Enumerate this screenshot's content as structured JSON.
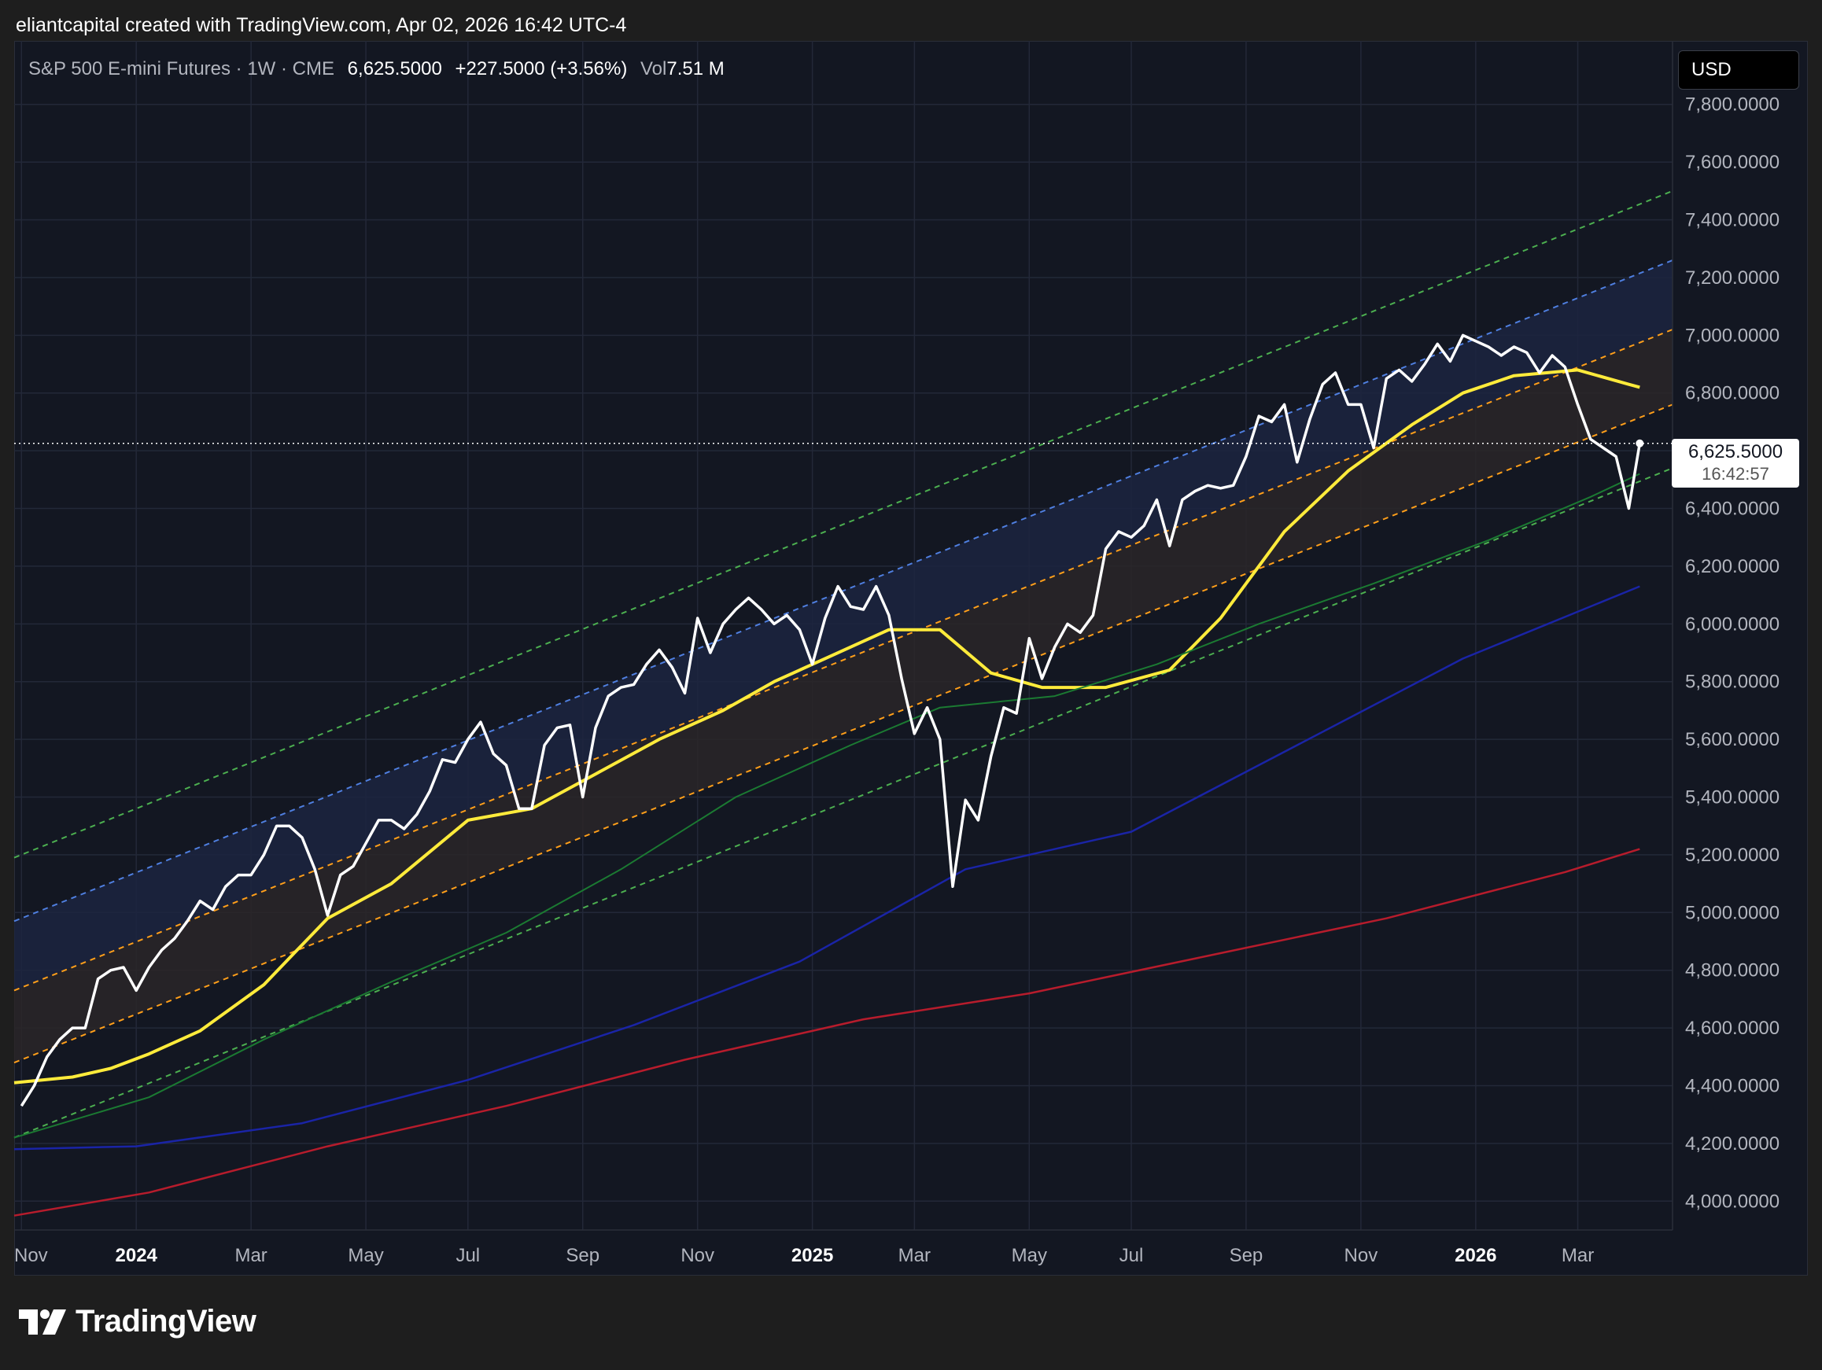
{
  "header": {
    "text": "eliantcapital created with TradingView.com, Apr 02, 2026 16:42 UTC-4"
  },
  "legend": {
    "symbol": "S&P 500 E-mini Futures · 1W · CME",
    "price": "6,625.5000",
    "change": "+227.5000 (+3.56%)",
    "vol_label": "Vol",
    "vol_value": "7.51 M"
  },
  "currency": "USD",
  "last_price": {
    "value": "6,625.5000",
    "countdown": "16:42:57"
  },
  "footer": {
    "brand": "TradingView"
  },
  "colors": {
    "price_line": "#ffffff",
    "ma_yellow": "#ffeb3b",
    "ma_green": "#1b7a32",
    "ma_blue": "#1a24a6",
    "ma_red": "#b71c2c",
    "channel_green": "#4caf50",
    "channel_blue": "#4f7fe0",
    "channel_orange": "#ff9f1a",
    "band_upper_fill": "#1c2540",
    "band_lower_fill": "#2a2628"
  },
  "chart_data": {
    "type": "line",
    "ylim": [
      3900,
      8020
    ],
    "y_ticks": [
      4000,
      4200,
      4400,
      4600,
      4800,
      5000,
      5200,
      5400,
      5600,
      5800,
      6000,
      6200,
      6400,
      6600,
      6800,
      7000,
      7200,
      7400,
      7600,
      7800
    ],
    "y_tick_labels": [
      "4,000.0000",
      "4,200.0000",
      "4,400.0000",
      "4,600.0000",
      "4,800.0000",
      "5,000.0000",
      "5,200.0000",
      "5,400.0000",
      "5,600.0000",
      "5,800.0000",
      "6,000.0000",
      "6,200.0000",
      "6,400.0000",
      "6,600.0000",
      "6,800.0000",
      "7,000.0000",
      "7,200.0000",
      "7,400.0000",
      "7,600.0000",
      "7,800.0000"
    ],
    "x_range": [
      "2023-10-23",
      "2026-04-20"
    ],
    "x_ticks": [
      {
        "date": "2023-10-27",
        "label": "Nov",
        "bold": false
      },
      {
        "date": "2023-12-29",
        "label": "2024",
        "bold": true
      },
      {
        "date": "2024-03-01",
        "label": "Mar",
        "bold": false
      },
      {
        "date": "2024-05-03",
        "label": "May",
        "bold": false
      },
      {
        "date": "2024-06-28",
        "label": "Jul",
        "bold": false
      },
      {
        "date": "2024-08-30",
        "label": "Sep",
        "bold": false
      },
      {
        "date": "2024-11-01",
        "label": "Nov",
        "bold": false
      },
      {
        "date": "2025-01-03",
        "label": "2025",
        "bold": true
      },
      {
        "date": "2025-02-28",
        "label": "Mar",
        "bold": false
      },
      {
        "date": "2025-05-02",
        "label": "May",
        "bold": false
      },
      {
        "date": "2025-06-27",
        "label": "Jul",
        "bold": false
      },
      {
        "date": "2025-08-29",
        "label": "Sep",
        "bold": false
      },
      {
        "date": "2025-10-31",
        "label": "Nov",
        "bold": false
      },
      {
        "date": "2026-01-02",
        "label": "2026",
        "bold": true
      },
      {
        "date": "2026-02-27",
        "label": "Mar",
        "bold": false
      }
    ],
    "price_series": {
      "x": [
        "2023-10-27",
        "2023-11-03",
        "2023-11-10",
        "2023-11-17",
        "2023-11-24",
        "2023-12-01",
        "2023-12-08",
        "2023-12-15",
        "2023-12-22",
        "2023-12-29",
        "2024-01-05",
        "2024-01-12",
        "2024-01-19",
        "2024-01-26",
        "2024-02-02",
        "2024-02-09",
        "2024-02-16",
        "2024-02-23",
        "2024-03-01",
        "2024-03-08",
        "2024-03-15",
        "2024-03-22",
        "2024-03-29",
        "2024-04-05",
        "2024-04-12",
        "2024-04-19",
        "2024-04-26",
        "2024-05-03",
        "2024-05-10",
        "2024-05-17",
        "2024-05-24",
        "2024-05-31",
        "2024-06-07",
        "2024-06-14",
        "2024-06-21",
        "2024-06-28",
        "2024-07-05",
        "2024-07-12",
        "2024-07-19",
        "2024-07-26",
        "2024-08-02",
        "2024-08-09",
        "2024-08-16",
        "2024-08-23",
        "2024-08-30",
        "2024-09-06",
        "2024-09-13",
        "2024-09-20",
        "2024-09-27",
        "2024-10-04",
        "2024-10-11",
        "2024-10-18",
        "2024-10-25",
        "2024-11-01",
        "2024-11-08",
        "2024-11-15",
        "2024-11-22",
        "2024-11-29",
        "2024-12-06",
        "2024-12-13",
        "2024-12-20",
        "2024-12-27",
        "2025-01-03",
        "2025-01-10",
        "2025-01-17",
        "2025-01-24",
        "2025-01-31",
        "2025-02-07",
        "2025-02-14",
        "2025-02-21",
        "2025-02-28",
        "2025-03-07",
        "2025-03-14",
        "2025-03-21",
        "2025-03-28",
        "2025-04-04",
        "2025-04-11",
        "2025-04-18",
        "2025-04-25",
        "2025-05-02",
        "2025-05-09",
        "2025-05-16",
        "2025-05-23",
        "2025-05-30",
        "2025-06-06",
        "2025-06-13",
        "2025-06-20",
        "2025-06-27",
        "2025-07-04",
        "2025-07-11",
        "2025-07-18",
        "2025-07-25",
        "2025-08-01",
        "2025-08-08",
        "2025-08-15",
        "2025-08-22",
        "2025-08-29",
        "2025-09-05",
        "2025-09-12",
        "2025-09-19",
        "2025-09-26",
        "2025-10-03",
        "2025-10-10",
        "2025-10-17",
        "2025-10-24",
        "2025-10-31",
        "2025-11-07",
        "2025-11-14",
        "2025-11-21",
        "2025-11-28",
        "2025-12-05",
        "2025-12-12",
        "2025-12-19",
        "2025-12-26",
        "2026-01-02",
        "2026-01-09",
        "2026-01-16",
        "2026-01-23",
        "2026-01-30",
        "2026-02-06",
        "2026-02-13",
        "2026-02-20",
        "2026-02-27",
        "2026-03-06",
        "2026-03-13",
        "2026-03-20",
        "2026-03-27",
        "2026-04-02"
      ],
      "values": [
        4330,
        4400,
        4500,
        4560,
        4600,
        4600,
        4770,
        4800,
        4810,
        4730,
        4810,
        4870,
        4910,
        4970,
        5040,
        5010,
        5090,
        5130,
        5130,
        5200,
        5300,
        5300,
        5260,
        5150,
        4990,
        5130,
        5160,
        5240,
        5320,
        5320,
        5290,
        5340,
        5420,
        5530,
        5520,
        5600,
        5660,
        5550,
        5510,
        5360,
        5360,
        5580,
        5640,
        5650,
        5400,
        5640,
        5750,
        5780,
        5790,
        5860,
        5910,
        5850,
        5760,
        6020,
        5900,
        6000,
        6050,
        6090,
        6050,
        6000,
        6030,
        5980,
        5860,
        6020,
        6130,
        6060,
        6050,
        6130,
        6030,
        5810,
        5620,
        5710,
        5600,
        5090,
        5390,
        5320,
        5540,
        5710,
        5690,
        5950,
        5810,
        5920,
        6000,
        5970,
        6030,
        6260,
        6320,
        6300,
        6340,
        6430,
        6270,
        6430,
        6460,
        6480,
        6470,
        6480,
        6580,
        6720,
        6700,
        6760,
        6560,
        6710,
        6830,
        6870,
        6760,
        6760,
        6610,
        6850,
        6880,
        6840,
        6900,
        6970,
        6910,
        7000,
        6980,
        6960,
        6930,
        6960,
        6940,
        6870,
        6930,
        6890,
        6760,
        6640,
        6610,
        6580,
        6400,
        6625.5
      ]
    },
    "moving_averages": [
      {
        "color": "yellow",
        "x": [
          "2023-10-23",
          "2023-11-24",
          "2023-12-15",
          "2024-01-05",
          "2024-02-02",
          "2024-03-08",
          "2024-04-12",
          "2024-05-17",
          "2024-06-28",
          "2024-08-02",
          "2024-09-06",
          "2024-10-11",
          "2024-11-15",
          "2024-12-13",
          "2025-01-10",
          "2025-02-14",
          "2025-03-14",
          "2025-04-11",
          "2025-05-09",
          "2025-06-13",
          "2025-07-18",
          "2025-08-15",
          "2025-09-19",
          "2025-10-24",
          "2025-11-28",
          "2025-12-26",
          "2026-01-23",
          "2026-02-27",
          "2026-03-27",
          "2026-04-02"
        ],
        "values": [
          4410,
          4430,
          4460,
          4510,
          4590,
          4750,
          4980,
          5100,
          5320,
          5360,
          5480,
          5600,
          5700,
          5800,
          5880,
          5980,
          5980,
          5830,
          5780,
          5780,
          5840,
          6020,
          6320,
          6530,
          6690,
          6800,
          6860,
          6880,
          6830,
          6820
        ]
      },
      {
        "color": "green",
        "x": [
          "2023-10-23",
          "2024-01-05",
          "2024-03-08",
          "2024-05-17",
          "2024-07-19",
          "2024-09-20",
          "2024-11-22",
          "2025-01-24",
          "2025-03-14",
          "2025-05-16",
          "2025-07-11",
          "2025-09-05",
          "2025-11-07",
          "2026-01-09",
          "2026-03-06",
          "2026-04-02"
        ],
        "values": [
          4220,
          4360,
          4560,
          4760,
          4930,
          5150,
          5400,
          5580,
          5710,
          5750,
          5860,
          6000,
          6140,
          6290,
          6440,
          6520
        ]
      },
      {
        "color": "blue",
        "x": [
          "2023-10-23",
          "2023-12-29",
          "2024-03-29",
          "2024-06-28",
          "2024-09-27",
          "2024-12-27",
          "2025-03-28",
          "2025-06-27",
          "2025-09-26",
          "2025-12-26",
          "2026-04-02"
        ],
        "values": [
          4180,
          4190,
          4270,
          4420,
          4610,
          4830,
          5150,
          5280,
          5580,
          5880,
          6130
        ]
      },
      {
        "color": "red",
        "x": [
          "2023-10-23",
          "2024-01-05",
          "2024-04-12",
          "2024-07-19",
          "2024-10-25",
          "2025-01-31",
          "2025-05-02",
          "2025-08-08",
          "2025-11-14",
          "2026-02-20",
          "2026-04-02"
        ],
        "values": [
          3950,
          4030,
          4190,
          4330,
          4490,
          4630,
          4720,
          4850,
          4980,
          5140,
          5220
        ]
      }
    ],
    "channels": [
      {
        "name": "upper-green",
        "x": [
          "2023-10-23",
          "2026-04-20"
        ],
        "values": [
          5190,
          7500
        ]
      },
      {
        "name": "upper-blue",
        "x": [
          "2023-10-23",
          "2026-04-20"
        ],
        "values": [
          4970,
          7260
        ]
      },
      {
        "name": "mid-orange",
        "x": [
          "2023-10-23",
          "2026-04-20"
        ],
        "values": [
          4730,
          7020
        ]
      },
      {
        "name": "low-orange",
        "x": [
          "2023-10-23",
          "2026-04-20"
        ],
        "values": [
          4480,
          6760
        ]
      },
      {
        "name": "lower-green",
        "x": [
          "2023-10-23",
          "2026-04-20"
        ],
        "values": [
          4220,
          6540
        ]
      }
    ],
    "last_value": 6625.5
  }
}
